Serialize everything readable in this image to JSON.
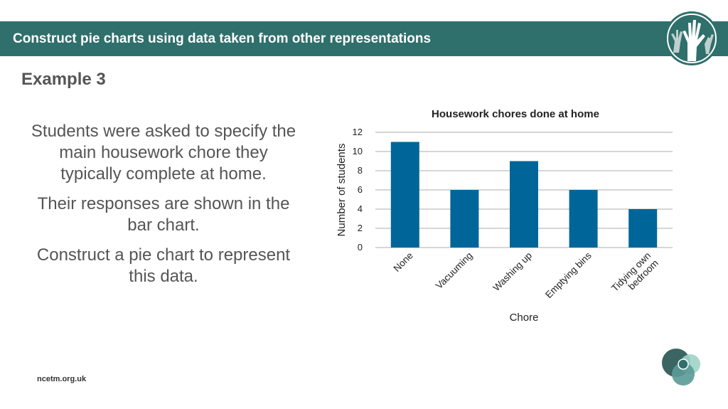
{
  "header": {
    "title": "Construct pie charts using data taken from other representations",
    "logo_icon": "raised-hands-icon"
  },
  "slide": {
    "subtitle": "Example 3",
    "paragraphs": [
      "Students were asked to specify the main housework chore they typically complete at home.",
      "Their responses are shown in the bar chart.",
      "Construct a pie chart to represent this data."
    ]
  },
  "footer": {
    "site": "ncetm.org.uk",
    "corner_icon": "ncetm-circles-icon"
  },
  "colors": {
    "banner": "#2f6f6c",
    "bar": "#006699",
    "text": "#555555"
  },
  "chart_data": {
    "type": "bar",
    "title": "Housework chores done at home",
    "xlabel": "Chore",
    "ylabel": "Number of students",
    "categories": [
      "None",
      "Vacuuming",
      "Washing up",
      "Emptying bins",
      "Tidying own bedroom"
    ],
    "category_lines": [
      [
        "None"
      ],
      [
        "Vacuuming"
      ],
      [
        "Washing up"
      ],
      [
        "Emptying bins"
      ],
      [
        "Tidying own",
        "bedroom"
      ]
    ],
    "values": [
      11,
      6,
      9,
      6,
      4
    ],
    "ylim": [
      0,
      12
    ],
    "yticks": [
      "0",
      "2",
      "4",
      "6",
      "8",
      "10",
      "12"
    ],
    "grid": true
  }
}
